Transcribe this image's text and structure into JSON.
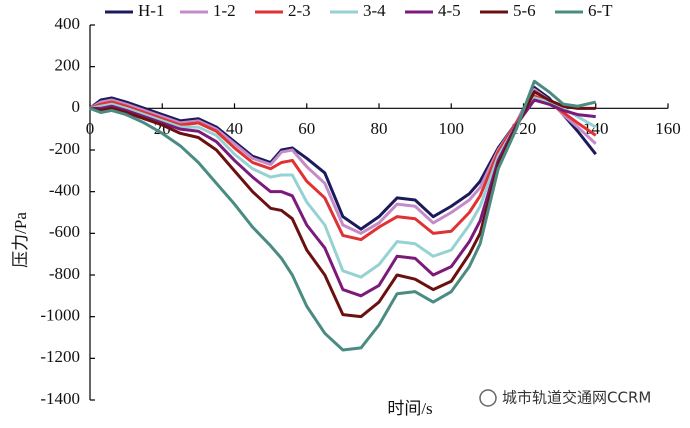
{
  "chart_data": {
    "type": "line",
    "x_label": "时间/s",
    "y_label": "压力/Pa",
    "annotations": [
      "城市轨道交通网CCRM"
    ],
    "x": [
      0,
      3,
      6,
      10,
      15,
      20,
      25,
      30,
      35,
      40,
      45,
      50,
      53,
      56,
      60,
      65,
      70,
      75,
      80,
      85,
      90,
      95,
      100,
      105,
      108,
      113,
      118,
      123,
      127,
      131,
      135,
      140
    ],
    "series": [
      {
        "name": "H-1",
        "color": "#1b1b5c",
        "values": [
          0,
          40,
          50,
          30,
          0,
          -30,
          -60,
          -50,
          -90,
          -160,
          -230,
          -260,
          -200,
          -190,
          -240,
          -310,
          -520,
          -580,
          -520,
          -430,
          -440,
          -520,
          -470,
          -410,
          -350,
          -190,
          -70,
          100,
          50,
          -30,
          -110,
          -220
        ]
      },
      {
        "name": "1-2",
        "color": "#c58ac8",
        "values": [
          0,
          30,
          40,
          20,
          -10,
          -40,
          -70,
          -60,
          -100,
          -170,
          -240,
          -270,
          -210,
          -200,
          -280,
          -360,
          -560,
          -600,
          -550,
          -460,
          -470,
          -550,
          -500,
          -440,
          -380,
          -200,
          -70,
          90,
          40,
          -30,
          -90,
          -170
        ]
      },
      {
        "name": "2-3",
        "color": "#e03232",
        "values": [
          0,
          20,
          30,
          10,
          -20,
          -50,
          -80,
          -70,
          -110,
          -190,
          -260,
          -290,
          -260,
          -250,
          -350,
          -430,
          -610,
          -630,
          -570,
          -520,
          -530,
          -600,
          -590,
          -500,
          -420,
          -210,
          -70,
          60,
          30,
          -20,
          -70,
          -130
        ]
      },
      {
        "name": "3-4",
        "color": "#96d2d2",
        "values": [
          0,
          10,
          20,
          0,
          -30,
          -60,
          -90,
          -90,
          -130,
          -220,
          -290,
          -330,
          -320,
          -320,
          -450,
          -560,
          -780,
          -810,
          -750,
          -640,
          -650,
          -710,
          -680,
          -560,
          -470,
          -230,
          -80,
          50,
          30,
          0,
          -40,
          -90
        ]
      },
      {
        "name": "4-5",
        "color": "#7b1a7b",
        "values": [
          0,
          0,
          10,
          -10,
          -40,
          -70,
          -100,
          -110,
          -160,
          -250,
          -330,
          -400,
          -400,
          -420,
          -560,
          -670,
          -870,
          -900,
          -850,
          -710,
          -720,
          -800,
          -760,
          -640,
          -540,
          -250,
          -80,
          40,
          20,
          -10,
          -30,
          -40
        ]
      },
      {
        "name": "5-6",
        "color": "#6b1010",
        "values": [
          0,
          -10,
          0,
          -20,
          -50,
          -80,
          -120,
          -140,
          -200,
          -300,
          -400,
          -480,
          -490,
          -530,
          -680,
          -800,
          -990,
          -1000,
          -930,
          -800,
          -820,
          -870,
          -830,
          -700,
          -600,
          -270,
          -90,
          80,
          40,
          10,
          0,
          0
        ]
      },
      {
        "name": "6-T",
        "color": "#4a8c82",
        "values": [
          0,
          -20,
          -10,
          -30,
          -70,
          -120,
          -180,
          -260,
          -360,
          -460,
          -570,
          -660,
          -720,
          -800,
          -950,
          -1080,
          -1160,
          -1150,
          -1040,
          -890,
          -880,
          -930,
          -880,
          -760,
          -650,
          -290,
          -100,
          130,
          80,
          20,
          10,
          30
        ]
      }
    ],
    "xlim": [
      0,
      160
    ],
    "xticks": [
      0,
      20,
      40,
      60,
      80,
      100,
      120,
      140,
      160
    ],
    "ylim": [
      -1400,
      400
    ],
    "yticks": [
      400,
      200,
      0,
      -200,
      -400,
      -600,
      -800,
      -1000,
      -1200,
      -1400
    ],
    "grid": false,
    "legend": "top"
  }
}
